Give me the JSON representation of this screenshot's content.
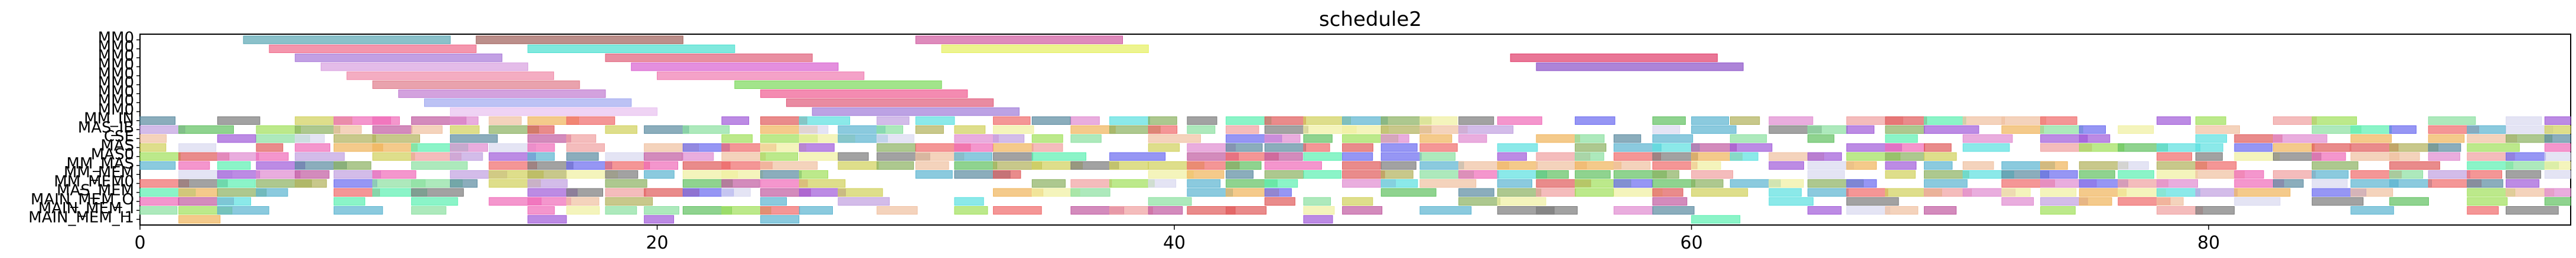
{
  "chart_data": {
    "type": "gantt",
    "title": "schedule2",
    "xlim": [
      0,
      94
    ],
    "xticks": [
      "0",
      "20",
      "40",
      "60",
      "80"
    ],
    "xtick_values": [
      0,
      20,
      40,
      60,
      80
    ],
    "rows": [
      "MM0",
      "MM0",
      "MM0",
      "MM0",
      "MM0",
      "MM0",
      "MM0",
      "MM0",
      "MM0",
      "MM_IN",
      "MAS_IB",
      "CSE",
      "MAS",
      "MAS0",
      "MM_MAS",
      "MM_MEM",
      "MM_MEM0",
      "MAS_MEM",
      "MAIN_MEM_O",
      "MAIN_MEM_I",
      "MAIN_MEM_I1"
    ],
    "bars": [
      {
        "row": 0,
        "start": 4.0,
        "end": 12.0,
        "color": "#5aa6b4"
      },
      {
        "row": 0,
        "start": 13.0,
        "end": 21.0,
        "color": "#a0605a"
      },
      {
        "row": 0,
        "start": 30.0,
        "end": 38.0,
        "color": "#d05aa0"
      },
      {
        "row": 1,
        "start": 5.0,
        "end": 13.0,
        "color": "#f06a8a"
      },
      {
        "row": 1,
        "start": 15.0,
        "end": 23.0,
        "color": "#4ae0d0"
      },
      {
        "row": 1,
        "start": 31.0,
        "end": 39.0,
        "color": "#e6f060"
      },
      {
        "row": 2,
        "start": 6.0,
        "end": 14.0,
        "color": "#a878d8"
      },
      {
        "row": 2,
        "start": 18.0,
        "end": 26.0,
        "color": "#e0607a"
      },
      {
        "row": 2,
        "start": 53.0,
        "end": 61.0,
        "color": "#e03c6a"
      },
      {
        "row": 3,
        "start": 7.0,
        "end": 15.0,
        "color": "#d8a0e0"
      },
      {
        "row": 3,
        "start": 19.0,
        "end": 27.0,
        "color": "#d860d0"
      },
      {
        "row": 3,
        "start": 54.0,
        "end": 62.0,
        "color": "#8a50c8"
      },
      {
        "row": 4,
        "start": 8.0,
        "end": 16.0,
        "color": "#f08aa8"
      },
      {
        "row": 4,
        "start": 20.0,
        "end": 28.0,
        "color": "#f07ab0"
      },
      {
        "row": 5,
        "start": 9.0,
        "end": 17.0,
        "color": "#e07a8a"
      },
      {
        "row": 5,
        "start": 23.0,
        "end": 31.0,
        "color": "#7ad85a"
      },
      {
        "row": 6,
        "start": 10.0,
        "end": 18.0,
        "color": "#c07ad0"
      },
      {
        "row": 6,
        "start": 24.0,
        "end": 32.0,
        "color": "#f05a90"
      },
      {
        "row": 7,
        "start": 11.0,
        "end": 19.0,
        "color": "#a0a8f0"
      },
      {
        "row": 7,
        "start": 25.0,
        "end": 33.0,
        "color": "#e05a7a"
      },
      {
        "row": 8,
        "start": 12.0,
        "end": 20.0,
        "color": "#e8c0f0"
      },
      {
        "row": 8,
        "start": 26.0,
        "end": 34.0,
        "color": "#a07ad8"
      }
    ],
    "dense_rows_start": 9,
    "dense_span": [
      0,
      94
    ],
    "palette": [
      "#5ab4d0",
      "#f06ab8",
      "#8ae0a0",
      "#f0b45a",
      "#6a6af0",
      "#d0d05a",
      "#f0a0a0",
      "#5ae0e0",
      "#a05ad8",
      "#e05a5a",
      "#60c060",
      "#c0a0e0",
      "#f0f0a0",
      "#5a8aa0",
      "#e08ad0",
      "#a0e05a",
      "#d8d8f0",
      "#f06a6a",
      "#8ab060",
      "#c05aa0",
      "#7a7a7a",
      "#f0c0a0",
      "#5af0b0",
      "#b0b05a"
    ]
  }
}
